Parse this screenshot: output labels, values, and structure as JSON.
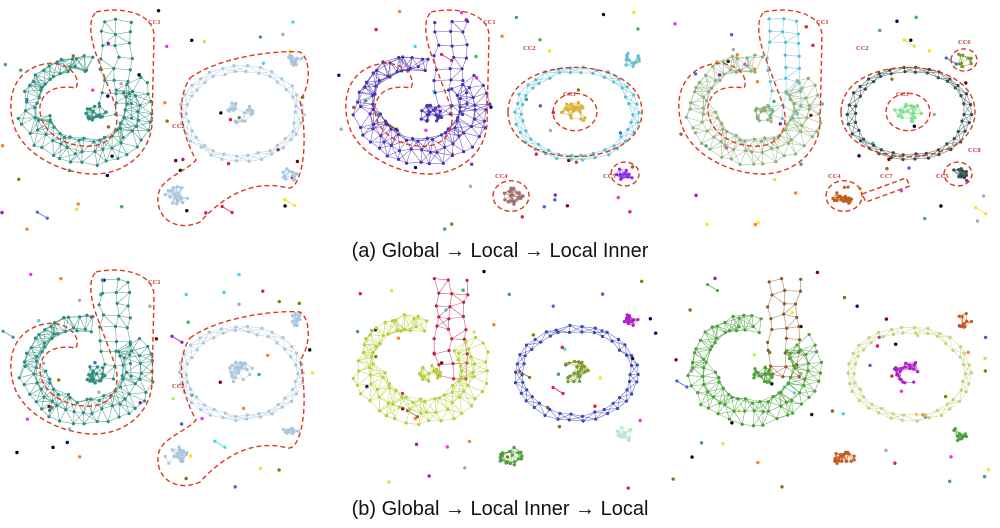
{
  "captions": {
    "a": "(a)  Global → Local → Local Inner",
    "b": "(b)  Global → Local Inner → Local"
  },
  "palette": {
    "cluster_red_outline": "#d93a1e",
    "teal": "#2e8b7a",
    "light_blue": "#a9c6dc",
    "dark_purple": "#4a2fb0",
    "cyan": "#5bbfd0",
    "gold": "#d9b13a",
    "mauve": "#a0706a",
    "violet": "#8a2be2",
    "dark_slate": "#2f4f4f",
    "sage": "#8fae7a",
    "light_green": "#7fe08f",
    "olive": "#7a9a2a",
    "orange_brown": "#c65b1d",
    "crimson": "#c0224a",
    "lime": "#b4cf3a",
    "navy_blue": "#3b46b3",
    "pale_mint": "#bde6c8",
    "brown": "#8b5a2b",
    "magenta": "#b01cc8",
    "pale_olive": "#c8cf7a",
    "leaf_green": "#4aa03a"
  },
  "panels": {
    "a1": [
      "CC1",
      "CC2"
    ],
    "a2": [
      "CC1",
      "CC2",
      "CC3",
      "CC4",
      "CC5"
    ],
    "a3": [
      "CC1",
      "CC2",
      "CC3",
      "CC4",
      "CC5",
      "CC6",
      "CC7",
      "CC8"
    ],
    "b1": [
      "CC1",
      "CC2"
    ],
    "b2": [],
    "b3": []
  }
}
